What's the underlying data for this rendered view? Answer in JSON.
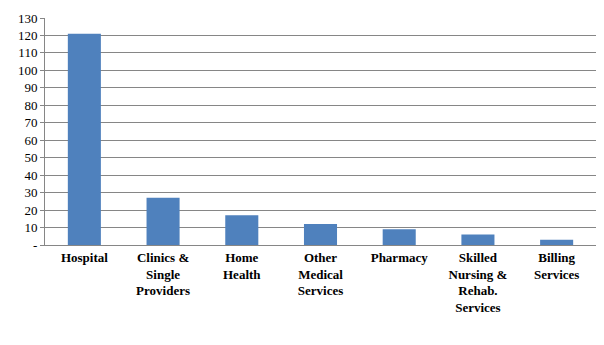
{
  "chart_data": {
    "type": "bar",
    "categories": [
      "Hospital",
      "Clinics & Single Providers",
      "Home Health",
      "Other Medical Services",
      "Pharmacy",
      "Skilled Nursing & Rehab. Services",
      "Billing Services"
    ],
    "values": [
      121,
      27,
      17,
      12,
      9,
      6,
      3
    ],
    "color": "#4f81bd",
    "ylim": [
      0,
      130
    ],
    "yticks": [
      {
        "value": 0,
        "label": "-"
      },
      10,
      20,
      30,
      40,
      50,
      60,
      70,
      80,
      90,
      100,
      110,
      120,
      130
    ],
    "grid": true
  }
}
